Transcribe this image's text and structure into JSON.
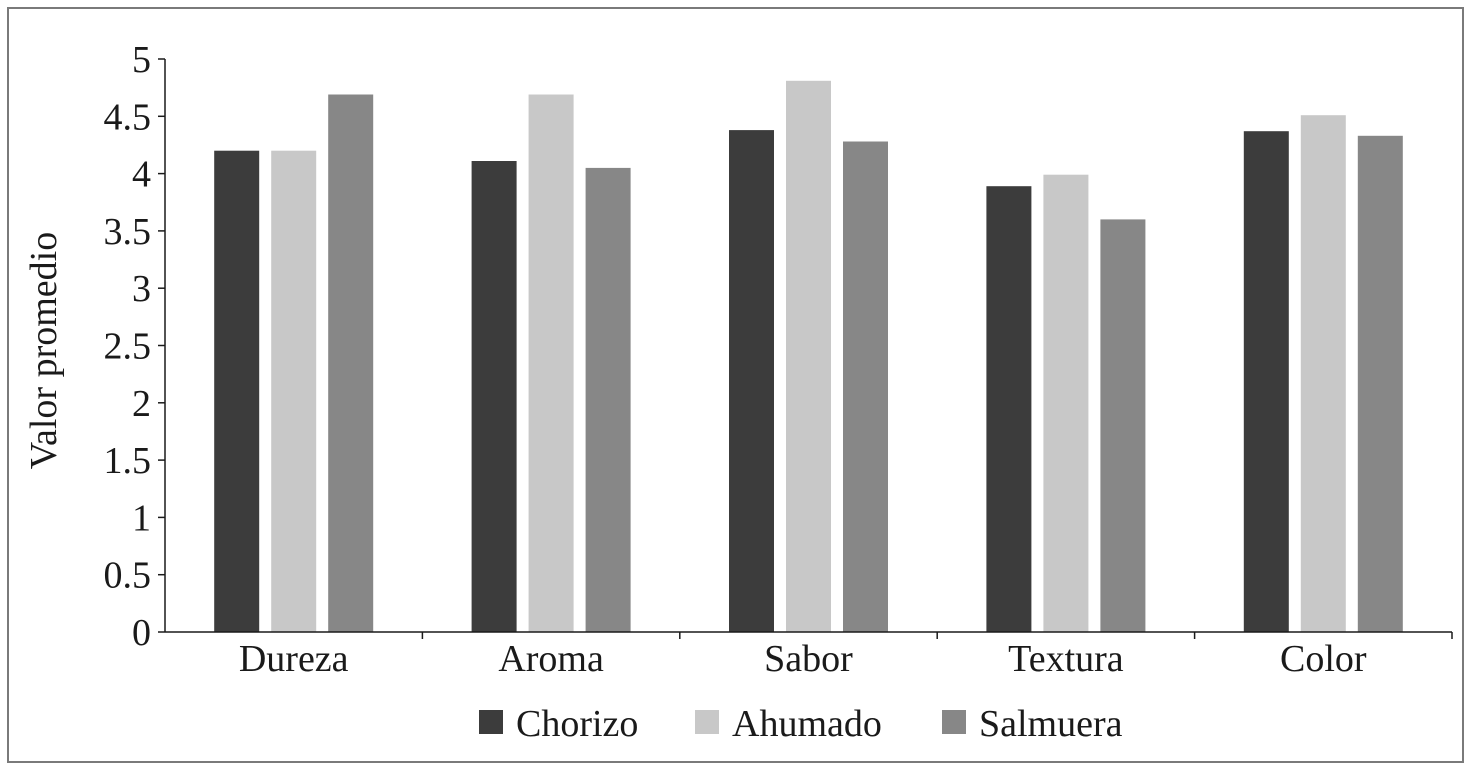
{
  "chart_data": {
    "type": "bar",
    "title": "",
    "xlabel": "",
    "ylabel": "Valor promedio",
    "ylim": [
      0,
      5
    ],
    "ytick_step": 0.5,
    "ytick_labels": [
      "0",
      "0.5",
      "1",
      "1.5",
      "2",
      "2.5",
      "3",
      "3.5",
      "4",
      "4.5",
      "5"
    ],
    "categories": [
      "Dureza",
      "Aroma",
      "Sabor",
      "Textura",
      "Color"
    ],
    "series": [
      {
        "name": "Chorizo",
        "color": "#3c3c3c",
        "values": [
          4.2,
          4.11,
          4.38,
          3.89,
          4.37
        ]
      },
      {
        "name": "Ahumado",
        "color": "#c8c8c8",
        "values": [
          4.2,
          4.69,
          4.81,
          3.99,
          4.51
        ]
      },
      {
        "name": "Salmuera",
        "color": "#878787",
        "values": [
          4.69,
          4.05,
          4.28,
          3.6,
          4.33
        ]
      }
    ],
    "grid": false,
    "legend_position": "bottom"
  }
}
